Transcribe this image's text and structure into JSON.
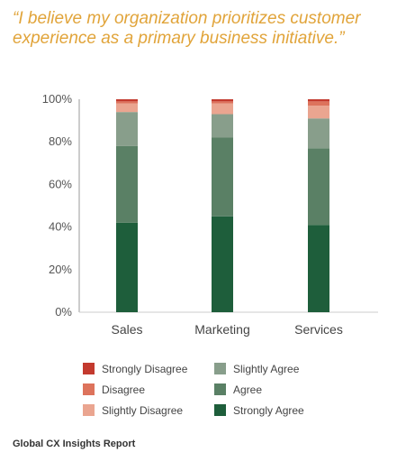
{
  "quote": "“I believe my organization prioritizes customer experience as a primary business initiative.”",
  "footer": "Global CX Insights Report",
  "chart_data": {
    "type": "bar",
    "stacked": true,
    "categories": [
      "Sales",
      "Marketing",
      "Services"
    ],
    "series": [
      {
        "name": "Strongly Agree",
        "color": "#1e5e3b",
        "values": [
          42,
          45,
          41
        ]
      },
      {
        "name": "Agree",
        "color": "#5a8065",
        "values": [
          36,
          37,
          36
        ]
      },
      {
        "name": "Slightly Agree",
        "color": "#889e8b",
        "values": [
          16,
          11,
          14
        ]
      },
      {
        "name": "Slightly Disagree",
        "color": "#eaa590",
        "values": [
          4,
          5,
          6
        ]
      },
      {
        "name": "Disagree",
        "color": "#dd735c",
        "values": [
          1,
          1,
          2
        ]
      },
      {
        "name": "Strongly Disagree",
        "color": "#c33a2e",
        "values": [
          1,
          1,
          1
        ]
      }
    ],
    "yticks": [
      "0%",
      "20%",
      "40%",
      "60%",
      "80%",
      "100%"
    ],
    "ylim": [
      0,
      100
    ],
    "grid": false,
    "legend_position": "bottom",
    "legend_order": [
      "Strongly Disagree",
      "Slightly Agree",
      "Disagree",
      "Agree",
      "Slightly Disagree",
      "Strongly Agree"
    ]
  }
}
